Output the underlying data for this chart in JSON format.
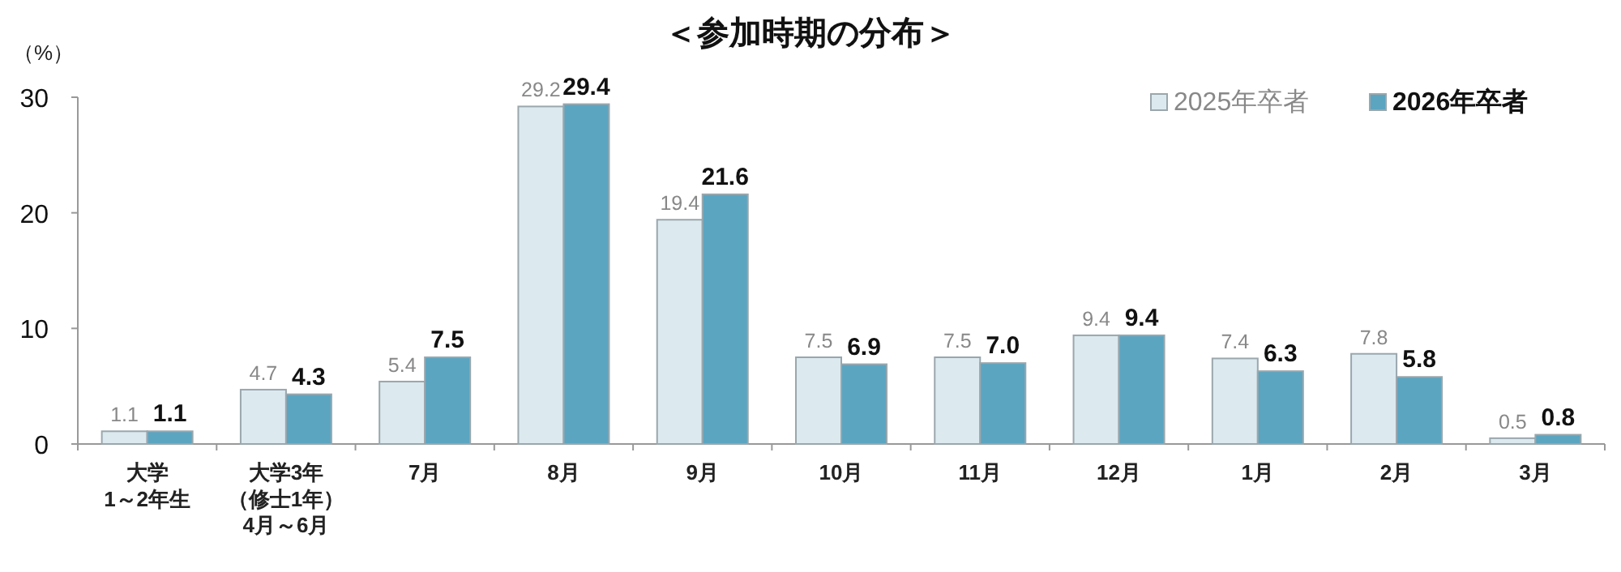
{
  "chart_data": {
    "type": "bar",
    "title": "＜参加時期の分布＞",
    "ylabel": "（%）",
    "categories": [
      "大学\n1～2年生",
      "大学3年（修士1年）4月～6月",
      "7月",
      "8月",
      "9月",
      "10月",
      "11月",
      "12月",
      "1月",
      "2月",
      "3月"
    ],
    "series": [
      {
        "name": "2025年卒者",
        "color": "#dceaf0",
        "values": [
          1.1,
          4.7,
          5.4,
          29.2,
          19.4,
          7.5,
          7.5,
          9.4,
          7.4,
          7.8,
          0.5
        ],
        "value_labels": [
          "1.1",
          "4.7",
          "5.4",
          "29.2",
          "19.4",
          "7.5",
          "7.5",
          "9.4",
          "7.4",
          "7.8",
          "0.5"
        ]
      },
      {
        "name": "2026年卒者",
        "color": "#5ba5c1",
        "values": [
          1.1,
          4.3,
          7.5,
          29.4,
          21.6,
          6.9,
          7.0,
          9.4,
          6.3,
          5.8,
          0.8
        ],
        "value_labels": [
          "1.1",
          "4.3",
          "7.5",
          "29.4",
          "21.6",
          "6.9",
          "7.0",
          "9.4",
          "6.3",
          "5.8",
          "0.8"
        ]
      }
    ],
    "ylim": [
      0,
      30
    ],
    "yticks": [
      0,
      10,
      20,
      30
    ],
    "grid": false,
    "legend": "top right"
  }
}
